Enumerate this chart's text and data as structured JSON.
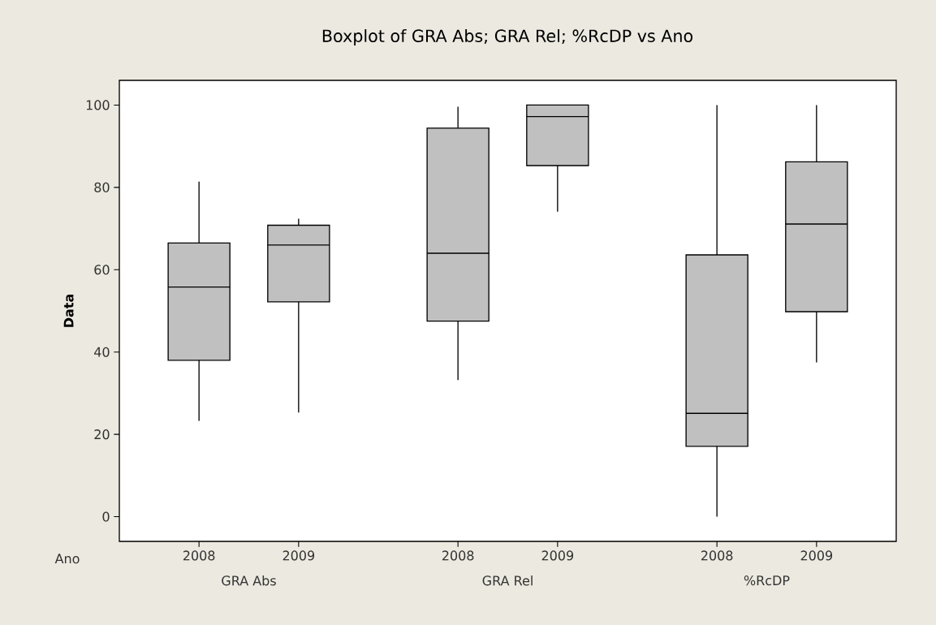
{
  "chart_data": {
    "type": "box",
    "title": "Boxplot of GRA Abs; GRA Rel; %RcDP vs Ano",
    "xlabel": "Ano",
    "ylabel": "Data",
    "categories": [
      "2008",
      "2009",
      "2008",
      "2009",
      "2008",
      "2009"
    ],
    "annotations": [
      "GRA Abs",
      "GRA Rel",
      "%RcDP"
    ],
    "color": "#c0c0c0",
    "ylim": [
      -6,
      106
    ],
    "yticks": [
      0,
      20,
      40,
      60,
      80,
      100
    ],
    "boxes": [
      {
        "low": 23.3,
        "q1": 38.0,
        "median": 55.8,
        "q3": 66.5,
        "high": 81.4
      },
      {
        "low": 25.3,
        "q1": 52.2,
        "median": 66.0,
        "q3": 70.8,
        "high": 72.4
      },
      {
        "low": 33.2,
        "q1": 47.5,
        "median": 64.0,
        "q3": 94.4,
        "high": 99.6
      },
      {
        "low": 74.1,
        "q1": 85.3,
        "median": 97.2,
        "q3": 100,
        "high": 100
      },
      {
        "low": 0,
        "q1": 17.1,
        "median": 25.1,
        "q3": 63.6,
        "high": 100
      },
      {
        "low": 37.5,
        "q1": 49.8,
        "median": 71.1,
        "q3": 86.2,
        "high": 100
      }
    ]
  }
}
